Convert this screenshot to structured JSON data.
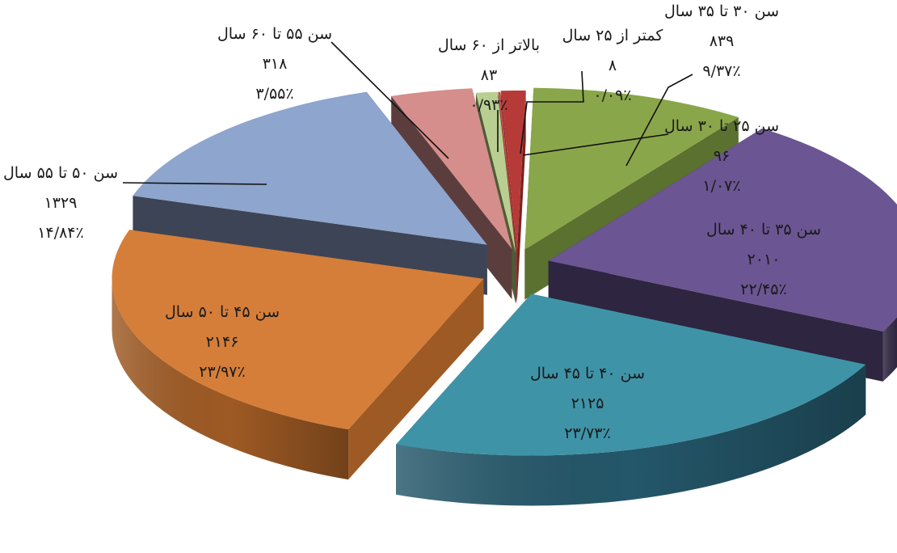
{
  "chart_data": {
    "type": "pie",
    "style": "3d-exploded",
    "title": "",
    "slices": [
      {
        "label": "کمتر از ۲۵ سال",
        "value_text": "۸",
        "percent_text": "۰/۰۹٪",
        "value": 8,
        "percent": 0.09,
        "color": "#c0504d",
        "side": "#8b2f2c"
      },
      {
        "label": "سن ۲۵ تا ۳۰ سال",
        "value_text": "۹۶",
        "percent_text": "۱/۰۷٪",
        "value": 96,
        "percent": 1.07,
        "color": "#b63b38",
        "side": "#7a2220"
      },
      {
        "label": "سن ۳۰ تا ۳۵ سال",
        "value_text": "۸۳۹",
        "percent_text": "۹/۳۷٪",
        "value": 839,
        "percent": 9.37,
        "color": "#8aa64a",
        "side": "#5b7130"
      },
      {
        "label": "سن ۳۵ تا ۴۰ سال",
        "value_text": "۲۰۱۰",
        "percent_text": "۲۲/۴۵٪",
        "value": 2010,
        "percent": 22.45,
        "color": "#6b5592",
        "side": "#2e2540"
      },
      {
        "label": "سن ۴۰ تا ۴۵ سال",
        "value_text": "۲۱۲۵",
        "percent_text": "۲۳/۷۳٪",
        "value": 2125,
        "percent": 23.73,
        "color": "#3f93a7",
        "side": "#24576a"
      },
      {
        "label": "سن ۴۵ تا ۵۰ سال",
        "value_text": "۲۱۴۶",
        "percent_text": "۲۳/۹۷٪",
        "value": 2146,
        "percent": 23.97,
        "color": "#d57e3a",
        "side": "#9e5a24"
      },
      {
        "label": "سن ۵۰ تا ۵۵ سال",
        "value_text": "۱۳۲۹",
        "percent_text": "۱۴/۸۴٪",
        "value": 1329,
        "percent": 14.84,
        "color": "#8ea5cd",
        "side": "#3d4455"
      },
      {
        "label": "سن ۵۵ تا ۶۰ سال",
        "value_text": "۳۱۸",
        "percent_text": "۳/۵۵٪",
        "value": 318,
        "percent": 3.55,
        "color": "#d58e8c",
        "side": "#5c3d3d"
      },
      {
        "label": "بالاتر از ۶۰ سال",
        "value_text": "۸۳",
        "percent_text": "۰/۹۳٪",
        "value": 83,
        "percent": 0.93,
        "color": "#b9cf91",
        "side": "#4e5c36"
      }
    ]
  }
}
